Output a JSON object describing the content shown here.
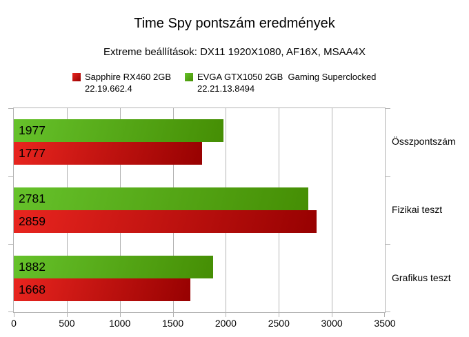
{
  "chart_data": {
    "type": "bar",
    "orientation": "horizontal",
    "title": "Time Spy pontszám eredmények",
    "subtitle": "Extreme beállítások: DX11 1920X1080, AF16X, MSAA4X",
    "categories": [
      "Összpontszám",
      "Fizikai teszt",
      "Grafikus teszt"
    ],
    "series": [
      {
        "name": "Sapphire RX460 2GB 22.19.662.4",
        "legend_lines": [
          "Sapphire RX460 2GB",
          "22.19.662.4"
        ],
        "values": [
          1777,
          2859,
          1668
        ],
        "color_start": "#e9251f",
        "color_end": "#970101"
      },
      {
        "name": "EVGA GTX1050 2GB Gaming Superclocked 22.21.13.8494",
        "legend_lines": [
          "EVGA GTX1050 2GB  Gaming Superclocked",
          "22.21.13.8494"
        ],
        "values": [
          1977,
          2781,
          1882
        ],
        "color_start": "#66c22b",
        "color_end": "#458e04"
      }
    ],
    "draw_order": [
      1,
      0
    ],
    "xlim": [
      0,
      3500
    ],
    "xticks": [
      0,
      500,
      1000,
      1500,
      2000,
      2500,
      3000,
      3500
    ],
    "grid": "vertical",
    "value_labels": "inside-start",
    "legend_position": "top"
  },
  "colors": {
    "background": "#ffffff",
    "grid": "#b3b3b3",
    "text": "#000000"
  }
}
